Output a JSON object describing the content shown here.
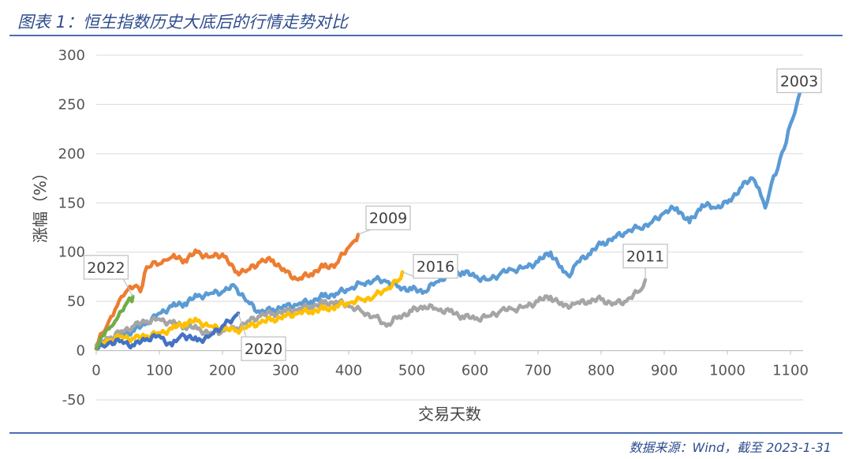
{
  "header": {
    "title": "图表 1：恒生指数历史大底后的行情走势对比"
  },
  "footer": {
    "source": "数据来源：Wind，截至 2023-1-31"
  },
  "chart_data": {
    "type": "line",
    "title": "恒生指数历史大底后的行情走势对比",
    "xlabel": "交易天数",
    "ylabel": "涨幅（%）",
    "xlim": [
      0,
      1120
    ],
    "ylim": [
      -50,
      300
    ],
    "xticks": [
      0,
      100,
      200,
      300,
      400,
      500,
      600,
      700,
      800,
      900,
      1000,
      1100
    ],
    "yticks": [
      -50,
      0,
      50,
      100,
      150,
      200,
      250,
      300
    ],
    "grid": true,
    "series": [
      {
        "name": "2003",
        "color": "#5b9bd5",
        "x": [
          0,
          20,
          40,
          60,
          80,
          100,
          120,
          140,
          160,
          180,
          200,
          220,
          240,
          260,
          280,
          300,
          320,
          340,
          360,
          380,
          400,
          420,
          440,
          460,
          480,
          500,
          520,
          540,
          560,
          580,
          600,
          620,
          640,
          660,
          680,
          700,
          720,
          740,
          750,
          760,
          780,
          800,
          820,
          840,
          860,
          880,
          900,
          920,
          940,
          960,
          980,
          1000,
          1020,
          1040,
          1050,
          1060,
          1070,
          1080,
          1090,
          1100,
          1110,
          1115
        ],
        "y": [
          5,
          12,
          18,
          20,
          28,
          38,
          45,
          48,
          55,
          58,
          60,
          65,
          50,
          38,
          42,
          45,
          47,
          50,
          55,
          58,
          62,
          68,
          72,
          70,
          65,
          62,
          60,
          70,
          78,
          80,
          75,
          72,
          78,
          82,
          85,
          90,
          100,
          80,
          75,
          88,
          98,
          108,
          115,
          120,
          125,
          130,
          140,
          145,
          130,
          148,
          145,
          150,
          165,
          175,
          165,
          145,
          170,
          185,
          205,
          230,
          250,
          262
        ]
      },
      {
        "name": "2009",
        "color": "#ed7d31",
        "x": [
          0,
          10,
          20,
          30,
          40,
          50,
          60,
          70,
          80,
          90,
          100,
          110,
          120,
          140,
          160,
          180,
          200,
          220,
          240,
          260,
          280,
          300,
          320,
          340,
          360,
          380,
          400,
          410,
          415
        ],
        "y": [
          5,
          18,
          30,
          42,
          55,
          62,
          65,
          60,
          85,
          90,
          88,
          92,
          95,
          92,
          100,
          95,
          98,
          80,
          82,
          90,
          92,
          80,
          72,
          78,
          85,
          88,
          105,
          112,
          118
        ]
      },
      {
        "name": "2011",
        "color": "#a5a5a5",
        "x": [
          0,
          20,
          40,
          60,
          80,
          100,
          120,
          140,
          160,
          180,
          200,
          220,
          240,
          260,
          280,
          300,
          320,
          340,
          360,
          380,
          400,
          420,
          440,
          460,
          480,
          500,
          520,
          540,
          560,
          580,
          600,
          620,
          640,
          660,
          680,
          700,
          720,
          740,
          760,
          780,
          800,
          820,
          840,
          860,
          870
        ],
        "y": [
          5,
          12,
          20,
          25,
          30,
          32,
          28,
          25,
          22,
          18,
          20,
          22,
          30,
          35,
          38,
          40,
          42,
          45,
          48,
          50,
          45,
          40,
          35,
          25,
          35,
          40,
          45,
          42,
          40,
          35,
          32,
          35,
          40,
          42,
          45,
          50,
          55,
          45,
          48,
          50,
          52,
          48,
          50,
          60,
          72
        ]
      },
      {
        "name": "2016",
        "color": "#ffc000",
        "x": [
          0,
          20,
          40,
          60,
          80,
          100,
          120,
          140,
          160,
          180,
          200,
          220,
          240,
          260,
          280,
          300,
          320,
          340,
          360,
          380,
          400,
          420,
          440,
          460,
          480,
          485
        ],
        "y": [
          3,
          10,
          15,
          12,
          15,
          18,
          22,
          28,
          30,
          25,
          22,
          20,
          25,
          28,
          32,
          35,
          38,
          40,
          42,
          45,
          48,
          52,
          55,
          62,
          72,
          80
        ]
      },
      {
        "name": "2020",
        "color": "#4472c4",
        "x": [
          0,
          10,
          20,
          40,
          60,
          80,
          100,
          120,
          130,
          140,
          160,
          180,
          200,
          210,
          220,
          225
        ],
        "y": [
          2,
          5,
          8,
          10,
          5,
          12,
          15,
          5,
          12,
          15,
          10,
          15,
          25,
          30,
          35,
          38
        ]
      },
      {
        "name": "2022",
        "color": "#70ad47",
        "x": [
          0,
          5,
          10,
          15,
          20,
          25,
          30,
          35,
          40,
          45,
          50,
          55,
          58
        ],
        "y": [
          2,
          8,
          15,
          20,
          22,
          25,
          30,
          35,
          40,
          45,
          50,
          52,
          55
        ]
      }
    ],
    "callouts": [
      {
        "label": "2003",
        "series": "2003"
      },
      {
        "label": "2009",
        "series": "2009"
      },
      {
        "label": "2011",
        "series": "2011"
      },
      {
        "label": "2016",
        "series": "2016"
      },
      {
        "label": "2020",
        "series": "2020"
      },
      {
        "label": "2022",
        "series": "2022"
      }
    ]
  }
}
